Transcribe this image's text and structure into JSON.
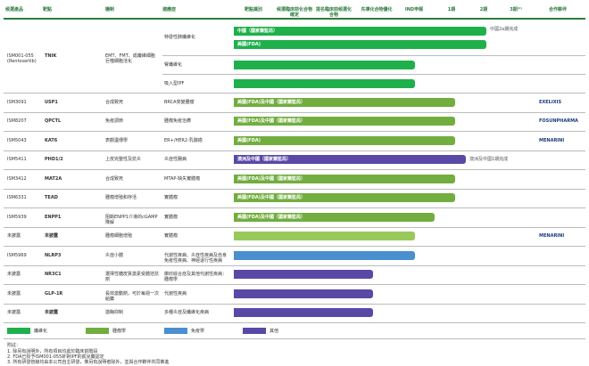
{
  "header": [
    "候選產品",
    "靶點",
    "機制",
    "適應症",
    "靶點識別",
    "候選臨床前化合物確定",
    "提名臨床前候選化合物",
    "先導化合物優化",
    "IND申報",
    "1期",
    "2期",
    "3期⁽¹⁾",
    "合作夥伴"
  ],
  "rows": [
    {
      "product": "ISM001-055 (Rentosertib)",
      "target": "TNIK",
      "mechanism": "EMT、FMT、成纖維細胞巨噬細胞活化",
      "indications": [
        {
          "name": "特發性肺纖維化",
          "bars": [
            "中國（國家藥監局）",
            "美國(FDA)"
          ],
          "note": "中國2a期完成"
        },
        {
          "name": "腎纖維化",
          "bars": [
            ""
          ]
        },
        {
          "name": "吸入型IPF",
          "bars": [
            ""
          ]
        }
      ]
    },
    {
      "product": "ISM3091",
      "target": "USP1",
      "mechanism": "合成致死",
      "indications": [
        {
          "name": "BRCA突變腫瘤",
          "bars": [
            "美國(FDA)及中國（國家藥監局）"
          ]
        }
      ],
      "partner": "EXELIXIS"
    },
    {
      "product": "ISM8207",
      "target": "QPCTL",
      "mechanism": "免疫調節",
      "indications": [
        {
          "name": "腫瘤免疫治療",
          "bars": [
            "美國(FDA)及中國（國家藥監局）"
          ]
        }
      ],
      "partner": "FOSUNPHARMA"
    },
    {
      "product": "ISM5043",
      "target": "KAT6",
      "mechanism": "表觀遺傳學",
      "indications": [
        {
          "name": "ER+/HER2-乳腺癌",
          "bars": [
            "美國(FDA)"
          ]
        }
      ],
      "partner": "MENARINI"
    },
    {
      "product": "ISM5411",
      "target": "PHD1/2",
      "mechanism": "上皮完整性及抗炎",
      "indications": [
        {
          "name": "炎症性腸病",
          "bars": [
            "澳洲及中國（國家藥監局）"
          ],
          "note": "澳洲及中國1期完成"
        }
      ]
    },
    {
      "product": "ISM3412",
      "target": "MAT2A",
      "mechanism": "合成致死",
      "indications": [
        {
          "name": "MTAP-缺失實體瘤",
          "bars": [
            "美國(FDA)及中國（國家藥監局）"
          ]
        }
      ]
    },
    {
      "product": "ISM6331",
      "target": "TEAD",
      "mechanism": "腫瘤增殖和存活",
      "indications": [
        {
          "name": "實體瘤",
          "bars": [
            "美國(FDA)及中國（國家藥監局）"
          ]
        }
      ]
    },
    {
      "product": "ISM5939",
      "target": "ENPP1",
      "mechanism": "阻斷ENPP1介導的cGAMP降解",
      "indications": [
        {
          "name": "實體瘤",
          "bars": [
            "美國(FDA)及中國（國家藥監局）"
          ]
        }
      ]
    },
    {
      "product": "未披露",
      "target": "未披露",
      "mechanism": "腫瘤細胞增殖",
      "indications": [
        {
          "name": "實體瘤",
          "bars": [
            ""
          ]
        }
      ],
      "partner": "MENARINI"
    },
    {
      "product": "ISM5969",
      "target": "NLRP3",
      "mechanism": "炎症小體",
      "indications": [
        {
          "name": "代謝性疾病、炎症性疾病及自身免疫性疾病、神經退行性疾病",
          "bars": [
            ""
          ]
        }
      ]
    },
    {
      "product": "未披露",
      "target": "NR3C1",
      "mechanism": "選擇性糖皮質激素受體拮抗劑",
      "indications": [
        {
          "name": "庫欣綜合症及其他代謝性疾病：腫瘤學",
          "bars": [
            ""
          ]
        }
      ]
    },
    {
      "product": "未披露",
      "target": "GLP-1R",
      "mechanism": "長效激動劑，可於每週一次給藥",
      "indications": [
        {
          "name": "代謝性疾病",
          "bars": [
            ""
          ]
        }
      ]
    },
    {
      "product": "未披露",
      "target": "未披露",
      "mechanism": "激酶抑制",
      "indications": [
        {
          "name": "多種炎症及纖維化疾病",
          "bars": [
            ""
          ]
        }
      ]
    }
  ],
  "legend": [
    "纖維化",
    "腫瘤學",
    "免疫學",
    "其他"
  ],
  "footnotes": {
    "title": "附註：",
    "items": [
      "1. 除另有說明外，所有項目均處於臨床前階段",
      "2. FDA已授予ISM001-055針對IPF的孤兒藥認定",
      "3. 所有研發管線均由本公司自主研發，惟另有說明者除外，並與合作夥伴共同推進"
    ]
  }
}
